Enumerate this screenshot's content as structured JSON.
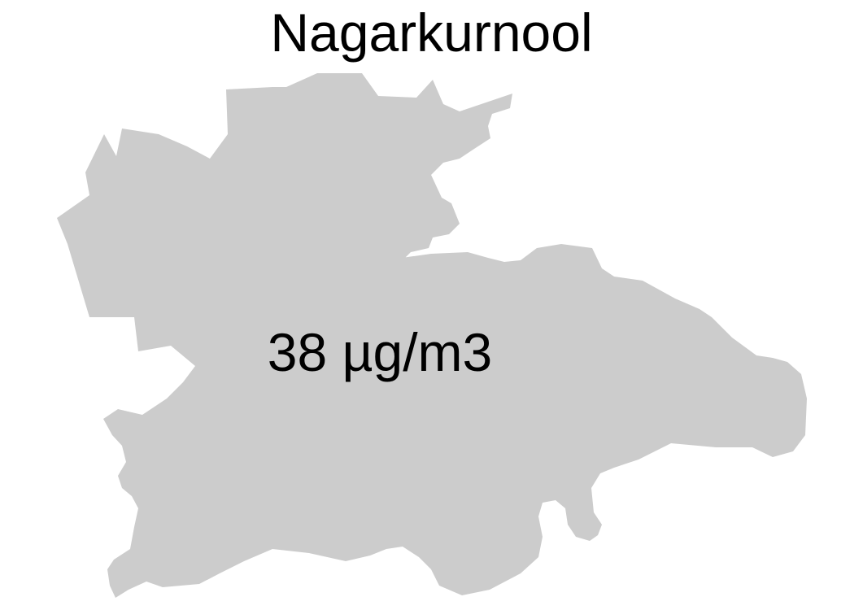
{
  "map": {
    "title": "Nagarkurnool",
    "region_label": "38 µg/m3",
    "region_name": "Nagarkurnool",
    "fill_color": "#cccccc",
    "label_color": "#000000"
  }
}
